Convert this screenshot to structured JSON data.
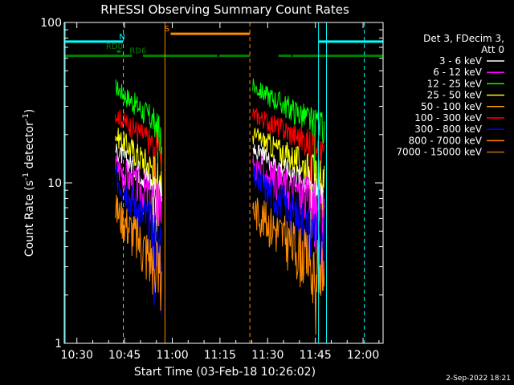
{
  "chart_data": {
    "type": "line",
    "title": "RHESSI Observing Summary Count Rates",
    "xlabel": "Start Time (03-Feb-18 10:26:02)",
    "ylabel_main": "Count Rate (s",
    "ylabel_sup1": "-1",
    "ylabel_mid": " detector",
    "ylabel_sup2": "-1",
    "ylabel_end": ")",
    "ylog": true,
    "xlim_min": [
      26.03,
      126.3
    ],
    "ylim": [
      1,
      100
    ],
    "x_ticks": [
      {
        "t": 30,
        "label": "10:30"
      },
      {
        "t": 45,
        "label": "10:45"
      },
      {
        "t": 60,
        "label": "11:00"
      },
      {
        "t": 75,
        "label": "11:15"
      },
      {
        "t": 90,
        "label": "11:30"
      },
      {
        "t": 105,
        "label": "11:45"
      },
      {
        "t": 120,
        "label": "12:00"
      }
    ],
    "y_ticks": [
      {
        "v": 1,
        "label": "1"
      },
      {
        "v": 10,
        "label": "10"
      },
      {
        "v": 100,
        "label": "100"
      }
    ],
    "legend_header": [
      "Det 3, FDecim 3,",
      "Att 0"
    ],
    "legend_placement": "right",
    "series": [
      {
        "name": "3 - 6 keV",
        "color": "#ffffff"
      },
      {
        "name": "6 - 12 keV",
        "color": "#ff00ff"
      },
      {
        "name": "12 - 25 keV",
        "color": "#00ff00"
      },
      {
        "name": "25 - 50 keV",
        "color": "#ffff00"
      },
      {
        "name": "50 - 100 keV",
        "color": "#ffa500"
      },
      {
        "name": "100 - 300 keV",
        "color": "#ff0000"
      },
      {
        "name": "300 - 800 keV",
        "color": "#0000ff"
      },
      {
        "name": "800 - 7000 keV",
        "color": "#ff8c00"
      },
      {
        "name": "7000 - 15000 keV",
        "color": "#c07000"
      }
    ],
    "draw_bands": [
      {
        "color": "#00ff00",
        "peak": 40,
        "end": 22,
        "noise": 0.12
      },
      {
        "color": "#ff0000",
        "peak": 27,
        "end": 16,
        "noise": 0.12
      },
      {
        "color": "#ffff00",
        "peak": 20,
        "end": 11,
        "noise": 0.14
      },
      {
        "color": "#ffffff",
        "peak": 16,
        "end": 9,
        "noise": 0.12
      },
      {
        "color": "#ff00ff",
        "peak": 13,
        "end": 7,
        "noise": 0.2
      },
      {
        "color": "#0000ff",
        "peak": 11,
        "end": 4.5,
        "noise": 0.2
      },
      {
        "color": "#ff8c00",
        "peak": 7,
        "end": 2.8,
        "noise": 0.25
      }
    ],
    "intervals": [
      {
        "start": 42.1,
        "end": 56.8
      },
      {
        "start": 85.3,
        "end": 107.9
      }
    ],
    "flag_bars": [
      {
        "label": "N",
        "color": "#00ffff",
        "y": 76,
        "segments": [
          [
            26.03,
            44.5
          ],
          [
            106.0,
            126.3
          ]
        ],
        "label_t": 44.2
      },
      {
        "label": "RD0",
        "color": "#008000",
        "y": 66,
        "segments": [
          [
            42.6,
            43.8
          ]
        ],
        "label_t": 41.8
      },
      {
        "label": "RD6",
        "color": "#008000",
        "y": 62,
        "segments": [
          [
            26.03,
            47.3
          ],
          [
            50.8,
            74.2
          ],
          [
            74.8,
            84.4
          ],
          [
            93.4,
            97.5
          ],
          [
            97.9,
            126.3
          ]
        ],
        "label_t": 49.2
      },
      {
        "label": "S",
        "color": "#ff8c00",
        "y": 85,
        "segments": [
          [
            59.5,
            84.4
          ]
        ],
        "label_t": 58.3
      }
    ],
    "vlines": [
      {
        "t": 26.3,
        "color": "#00ffff",
        "dash": false
      },
      {
        "t": 44.6,
        "color": "#00ffff",
        "dash": true
      },
      {
        "t": 57.7,
        "color": "#ff8c00",
        "dash": false
      },
      {
        "t": 84.4,
        "color": "#ff8c00",
        "dash": true
      },
      {
        "t": 106.0,
        "color": "#00ffff",
        "dash": false
      },
      {
        "t": 108.5,
        "color": "#00ffff",
        "dash": false
      },
      {
        "t": 120.4,
        "color": "#00ffff",
        "dash": true
      }
    ]
  },
  "footer": {
    "timestamp": "2-Sep-2022 18:21"
  }
}
